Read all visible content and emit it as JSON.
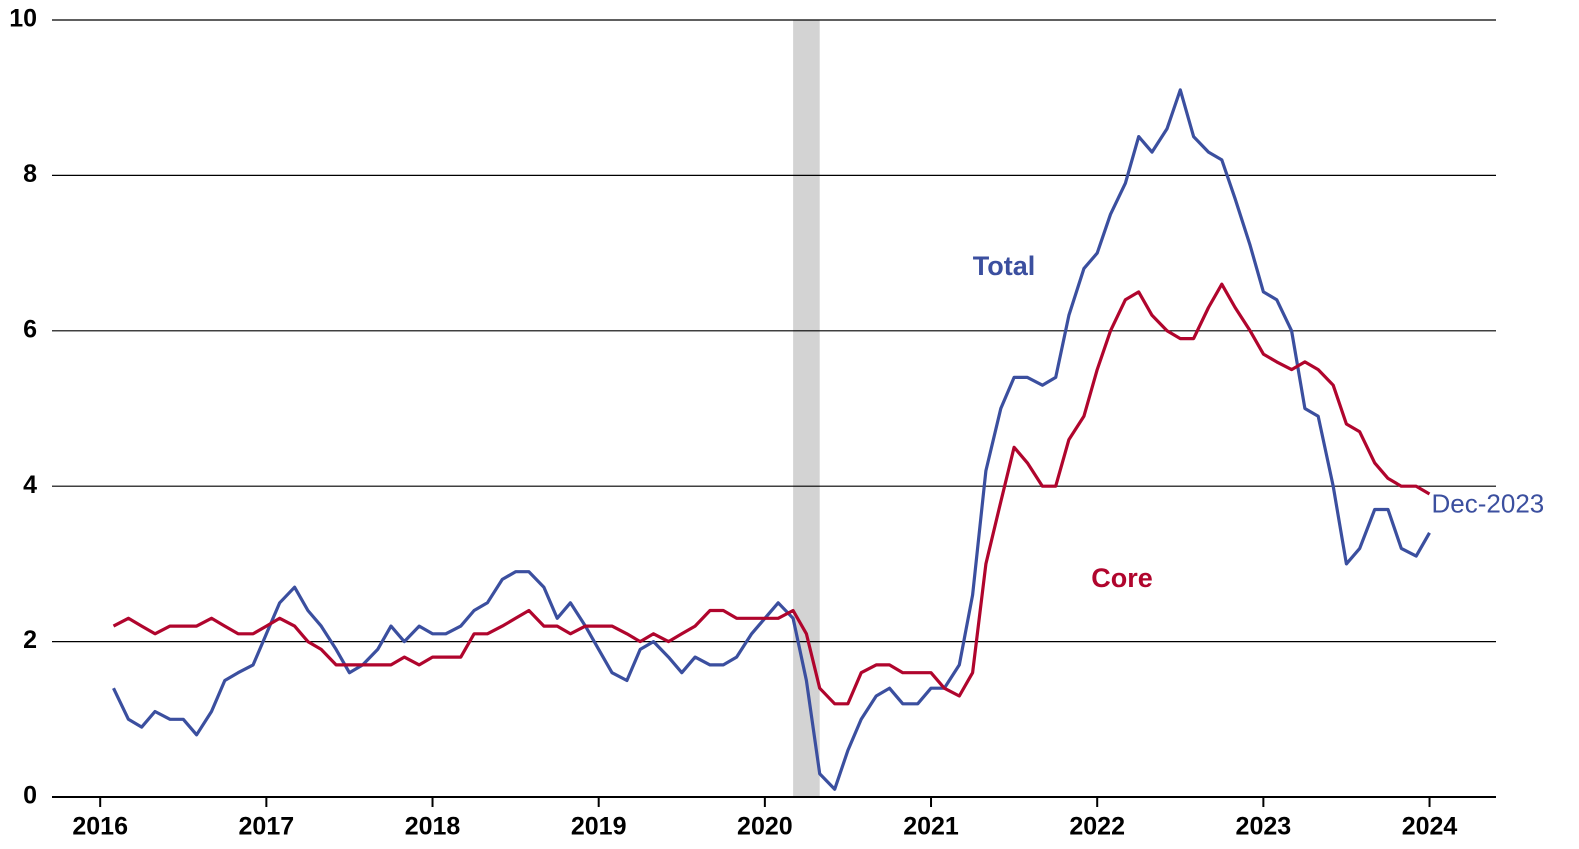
{
  "chart_data": {
    "type": "line",
    "x": [
      2016.08,
      2016.17,
      2016.25,
      2016.33,
      2016.42,
      2016.5,
      2016.58,
      2016.67,
      2016.75,
      2016.83,
      2016.92,
      2017.0,
      2017.08,
      2017.17,
      2017.25,
      2017.33,
      2017.42,
      2017.5,
      2017.58,
      2017.67,
      2017.75,
      2017.83,
      2017.92,
      2018.0,
      2018.08,
      2018.17,
      2018.25,
      2018.33,
      2018.42,
      2018.5,
      2018.58,
      2018.67,
      2018.75,
      2018.83,
      2018.92,
      2019.0,
      2019.08,
      2019.17,
      2019.25,
      2019.33,
      2019.42,
      2019.5,
      2019.58,
      2019.67,
      2019.75,
      2019.83,
      2019.92,
      2020.0,
      2020.08,
      2020.17,
      2020.25,
      2020.33,
      2020.42,
      2020.5,
      2020.58,
      2020.67,
      2020.75,
      2020.83,
      2020.92,
      2021.0,
      2021.08,
      2021.17,
      2021.25,
      2021.33,
      2021.42,
      2021.5,
      2021.58,
      2021.67,
      2021.75,
      2021.83,
      2021.92,
      2022.0,
      2022.08,
      2022.17,
      2022.25,
      2022.33,
      2022.42,
      2022.5,
      2022.58,
      2022.67,
      2022.75,
      2022.83,
      2022.92,
      2023.0,
      2023.08,
      2023.17,
      2023.25,
      2023.33,
      2023.42,
      2023.5,
      2023.58,
      2023.67,
      2023.75,
      2023.83,
      2023.92,
      2024.0
    ],
    "series": [
      {
        "name": "Total",
        "color": "#3b4f9f",
        "values": [
          1.4,
          1.0,
          0.9,
          1.1,
          1.0,
          1.0,
          0.8,
          1.1,
          1.5,
          1.6,
          1.7,
          2.1,
          2.5,
          2.7,
          2.4,
          2.2,
          1.9,
          1.6,
          1.7,
          1.9,
          2.2,
          2.0,
          2.2,
          2.1,
          2.1,
          2.2,
          2.4,
          2.5,
          2.8,
          2.9,
          2.9,
          2.7,
          2.3,
          2.5,
          2.2,
          1.9,
          1.6,
          1.5,
          1.9,
          2.0,
          1.8,
          1.6,
          1.8,
          1.7,
          1.7,
          1.8,
          2.1,
          2.3,
          2.5,
          2.3,
          1.5,
          0.3,
          0.1,
          0.6,
          1.0,
          1.3,
          1.4,
          1.2,
          1.2,
          1.4,
          1.4,
          1.7,
          2.6,
          4.2,
          5.0,
          5.4,
          5.4,
          5.3,
          5.4,
          6.2,
          6.8,
          7.0,
          7.5,
          7.9,
          8.5,
          8.3,
          8.6,
          9.1,
          8.5,
          8.3,
          8.2,
          7.7,
          7.1,
          6.5,
          6.4,
          6.0,
          5.0,
          4.9,
          4.0,
          3.0,
          3.2,
          3.7,
          3.7,
          3.2,
          3.1,
          3.4
        ]
      },
      {
        "name": "Core",
        "color": "#b0052d",
        "values": [
          2.2,
          2.3,
          2.2,
          2.1,
          2.2,
          2.2,
          2.2,
          2.3,
          2.2,
          2.1,
          2.1,
          2.2,
          2.3,
          2.2,
          2.0,
          1.9,
          1.7,
          1.7,
          1.7,
          1.7,
          1.7,
          1.8,
          1.7,
          1.8,
          1.8,
          1.8,
          2.1,
          2.1,
          2.2,
          2.3,
          2.4,
          2.2,
          2.2,
          2.1,
          2.2,
          2.2,
          2.2,
          2.1,
          2.0,
          2.1,
          2.0,
          2.1,
          2.2,
          2.4,
          2.4,
          2.3,
          2.3,
          2.3,
          2.3,
          2.4,
          2.1,
          1.4,
          1.2,
          1.2,
          1.6,
          1.7,
          1.7,
          1.6,
          1.6,
          1.6,
          1.4,
          1.3,
          1.6,
          3.0,
          3.8,
          4.5,
          4.3,
          4.0,
          4.0,
          4.6,
          4.9,
          5.5,
          6.0,
          6.4,
          6.5,
          6.2,
          6.0,
          5.9,
          5.9,
          6.3,
          6.6,
          6.3,
          6.0,
          5.7,
          5.6,
          5.5,
          5.6,
          5.5,
          5.3,
          4.8,
          4.7,
          4.3,
          4.1,
          4.0,
          4.0,
          3.9
        ]
      }
    ],
    "shaded_region": [
      2020.17,
      2020.33
    ],
    "annotation": "Dec-2023",
    "xlim": [
      2015.71,
      2024.4
    ],
    "xticks": [
      2016,
      2017,
      2018,
      2019,
      2020,
      2021,
      2022,
      2023,
      2024
    ],
    "ylim": [
      0,
      10
    ],
    "yticks": [
      0,
      2,
      4,
      6,
      8,
      10
    ],
    "grid": true
  }
}
